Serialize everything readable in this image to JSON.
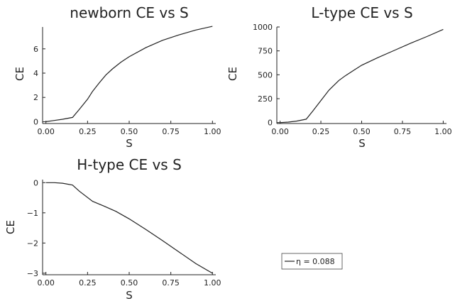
{
  "chart_data": [
    {
      "type": "line",
      "title": "newborn CE vs S",
      "xlabel": "S",
      "ylabel": "CE",
      "xlim": [
        -0.02,
        1.02
      ],
      "ylim": [
        -0.15,
        7.8
      ],
      "xticks": [
        0.0,
        0.25,
        0.5,
        0.75,
        1.0
      ],
      "xtick_labels": [
        "0.00",
        "0.25",
        "0.50",
        "0.75",
        "1.00"
      ],
      "yticks": [
        0,
        2,
        4,
        6
      ],
      "ytick_labels": [
        "0",
        "2",
        "4",
        "6"
      ],
      "series": [
        {
          "x": [
            0.0,
            0.05,
            0.1,
            0.16,
            0.2,
            0.25,
            0.28,
            0.32,
            0.36,
            0.4,
            0.45,
            0.5,
            0.6,
            0.7,
            0.8,
            0.9,
            1.0
          ],
          "y": [
            0.0,
            0.1,
            0.2,
            0.35,
            1.0,
            1.85,
            2.5,
            3.2,
            3.85,
            4.35,
            4.9,
            5.35,
            6.1,
            6.7,
            7.15,
            7.55,
            7.85
          ]
        }
      ]
    },
    {
      "type": "line",
      "title": "L-type CE vs S",
      "xlabel": "S",
      "ylabel": "CE",
      "xlim": [
        -0.02,
        1.02
      ],
      "ylim": [
        -10,
        1000
      ],
      "xticks": [
        0.0,
        0.25,
        0.5,
        0.75,
        1.0
      ],
      "xtick_labels": [
        "0.00",
        "0.25",
        "0.50",
        "0.75",
        "1.00"
      ],
      "yticks": [
        0,
        250,
        500,
        750,
        1000
      ],
      "ytick_labels": [
        "0",
        "250",
        "500",
        "750",
        "1000"
      ],
      "series": [
        {
          "x": [
            0.0,
            0.05,
            0.1,
            0.16,
            0.2,
            0.25,
            0.3,
            0.36,
            0.4,
            0.45,
            0.5,
            0.6,
            0.7,
            0.8,
            0.9,
            1.0
          ],
          "y": [
            0,
            5,
            15,
            35,
            120,
            230,
            340,
            440,
            490,
            545,
            600,
            680,
            755,
            830,
            900,
            975
          ]
        }
      ]
    },
    {
      "type": "line",
      "title": "H-type CE vs S",
      "xlabel": "S",
      "ylabel": "CE",
      "xlim": [
        -0.02,
        1.02
      ],
      "ylim": [
        -3.05,
        0.1
      ],
      "xticks": [
        0.0,
        0.25,
        0.5,
        0.75,
        1.0
      ],
      "xtick_labels": [
        "0.00",
        "0.25",
        "0.50",
        "0.75",
        "1.00"
      ],
      "yticks": [
        0,
        -1,
        -2,
        -3
      ],
      "ytick_labels": [
        "0",
        "−1",
        "−2",
        "−3"
      ],
      "series": [
        {
          "name": "η = 0.088",
          "x": [
            0.0,
            0.05,
            0.1,
            0.16,
            0.2,
            0.28,
            0.35,
            0.42,
            0.5,
            0.6,
            0.7,
            0.8,
            0.9,
            1.0
          ],
          "y": [
            0.0,
            0.0,
            -0.02,
            -0.08,
            -0.28,
            -0.62,
            -0.78,
            -0.95,
            -1.2,
            -1.55,
            -1.92,
            -2.3,
            -2.68,
            -3.0
          ]
        }
      ]
    }
  ],
  "legend": {
    "label": "η = 0.088",
    "position": "bottom-right"
  }
}
